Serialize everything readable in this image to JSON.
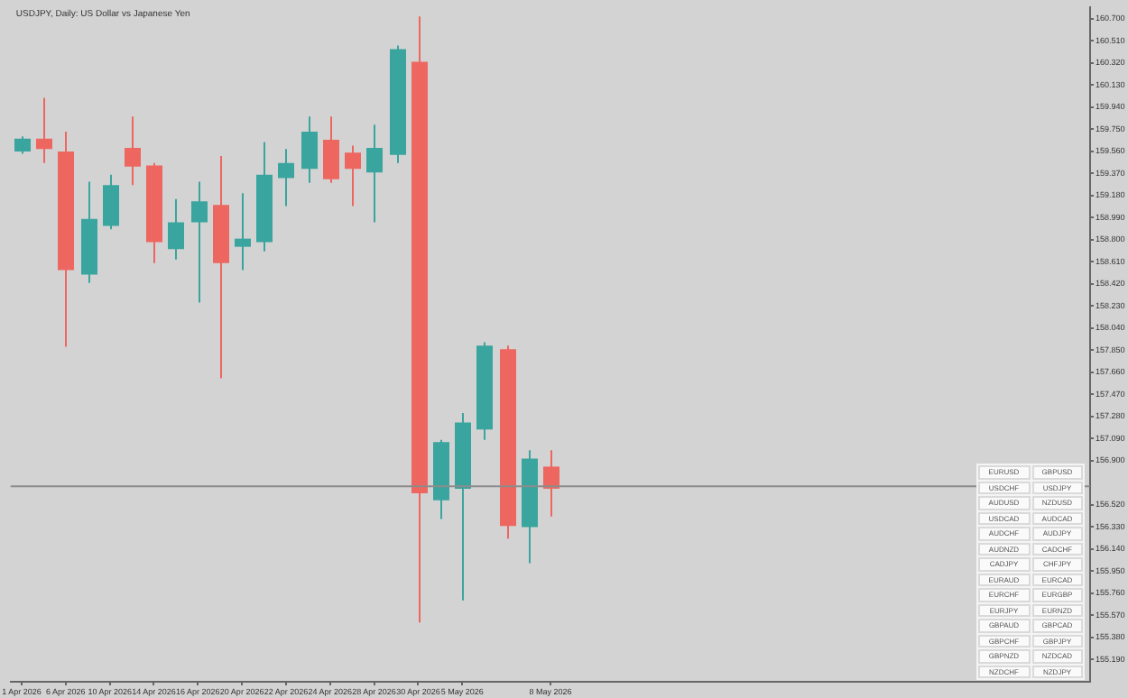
{
  "chart_data": {
    "type": "candlestick",
    "title": "USDJPY, Daily: US Dollar vs Japanese Yen",
    "categories": [
      "1 Apr 2026",
      null,
      "6 Apr 2026",
      null,
      "10 Apr 2026",
      null,
      "14 Apr 2026",
      null,
      "16 Apr 2026",
      null,
      "20 Apr 2026",
      null,
      "22 Apr 2026",
      null,
      "24 Apr 2026",
      null,
      "28 Apr 2026",
      null,
      "30 Apr 2026",
      null,
      "5 May 2026",
      null,
      null,
      null,
      "8 May 2026",
      null,
      null,
      null,
      null,
      null,
      null,
      null,
      null,
      null,
      null,
      null,
      null,
      null,
      null,
      null,
      null,
      null,
      null,
      null,
      null,
      null,
      null,
      null,
      null
    ],
    "ohlc": [
      [
        159.56,
        159.69,
        159.54,
        159.67
      ],
      [
        159.67,
        160.02,
        159.46,
        159.58
      ],
      [
        159.56,
        159.73,
        157.88,
        158.54
      ],
      [
        158.5,
        159.3,
        158.43,
        158.98
      ],
      [
        158.92,
        159.36,
        158.89,
        159.27
      ],
      [
        159.59,
        159.86,
        159.27,
        159.43
      ],
      [
        159.44,
        159.46,
        158.6,
        158.78
      ],
      [
        158.72,
        159.15,
        158.63,
        158.95
      ],
      [
        158.95,
        159.3,
        158.26,
        159.13
      ],
      [
        159.1,
        159.52,
        157.61,
        158.6
      ],
      [
        158.74,
        159.2,
        158.54,
        158.81
      ],
      [
        158.78,
        159.64,
        158.7,
        159.36
      ],
      [
        159.33,
        159.58,
        159.09,
        159.46
      ],
      [
        159.41,
        159.86,
        159.29,
        159.73
      ],
      [
        159.66,
        159.86,
        159.29,
        159.32
      ],
      [
        159.55,
        159.61,
        159.09,
        159.41
      ],
      [
        159.38,
        159.79,
        158.95,
        159.59
      ],
      [
        159.53,
        160.47,
        159.46,
        160.44
      ],
      [
        160.33,
        160.72,
        155.51,
        156.62
      ],
      [
        156.56,
        157.08,
        156.4,
        157.06
      ],
      [
        156.66,
        157.31,
        155.7,
        157.23
      ],
      [
        157.17,
        157.92,
        157.08,
        157.89
      ],
      [
        157.86,
        157.89,
        156.23,
        156.34
      ],
      [
        156.33,
        156.99,
        156.02,
        156.92
      ],
      [
        156.85,
        156.99,
        156.42,
        156.66
      ],
      null,
      null,
      null,
      null,
      null,
      null,
      null,
      null,
      null,
      null,
      null,
      null,
      null,
      null,
      null,
      null,
      null,
      null,
      null,
      null,
      null,
      null,
      null,
      null
    ],
    "colors": [
      "#3aa59e",
      "#ee6660",
      "#ee6660",
      "#3aa59e",
      "#3aa59e",
      "#ee6660",
      "#ee6660",
      "#3aa59e",
      "#3aa59e",
      "#ee6660",
      "#3aa59e",
      "#3aa59e",
      "#3aa59e",
      "#3aa59e",
      "#ee6660",
      "#ee6660",
      "#3aa59e",
      "#3aa59e",
      "#ee6660",
      "#3aa59e",
      "#3aa59e",
      "#3aa59e",
      "#ee6660",
      "#3aa59e",
      "#ee6660",
      null,
      null,
      null,
      null,
      null,
      null,
      null,
      null,
      null,
      null,
      null,
      null,
      null,
      null,
      null,
      null,
      null,
      null,
      null,
      null,
      null,
      null,
      null,
      null
    ],
    "ylim": [
      155.0,
      160.8
    ],
    "yticks": [
      {
        "value": 160.7,
        "label": "160.700"
      },
      {
        "value": 160.51,
        "label": "160.510"
      },
      {
        "value": 160.32,
        "label": "160.320"
      },
      {
        "value": 160.13,
        "label": "160.130"
      },
      {
        "value": 159.94,
        "label": "159.940"
      },
      {
        "value": 159.75,
        "label": "159.750"
      },
      {
        "value": 159.56,
        "label": "159.560"
      },
      {
        "value": 159.37,
        "label": "159.370"
      },
      {
        "value": 159.18,
        "label": "159.180"
      },
      {
        "value": 158.99,
        "label": "158.990"
      },
      {
        "value": 158.8,
        "label": "158.800"
      },
      {
        "value": 158.61,
        "label": "158.610"
      },
      {
        "value": 158.42,
        "label": "158.420"
      },
      {
        "value": 158.23,
        "label": "158.230"
      },
      {
        "value": 158.04,
        "label": "158.040"
      },
      {
        "value": 157.85,
        "label": "157.850"
      },
      {
        "value": 157.66,
        "label": "157.660"
      },
      {
        "value": 157.47,
        "label": "157.470"
      },
      {
        "value": 157.28,
        "label": "157.280"
      },
      {
        "value": 157.09,
        "label": "157.090"
      },
      {
        "value": 156.9,
        "label": "156.900"
      },
      {
        "value": 156.52,
        "label": "156.520"
      },
      {
        "value": 156.33,
        "label": "156.330"
      },
      {
        "value": 156.14,
        "label": "156.140"
      },
      {
        "value": 155.95,
        "label": "155.950"
      },
      {
        "value": 155.76,
        "label": "155.760"
      },
      {
        "value": 155.57,
        "label": "155.570"
      },
      {
        "value": 155.38,
        "label": "155.380"
      },
      {
        "value": 155.19,
        "label": "155.190"
      }
    ],
    "ref_lines": [
      {
        "axis": "y",
        "value": 156.68,
        "color": "#8c8c8c"
      }
    ],
    "annotations": [
      "EURUSD",
      "GBPUSD",
      "USDCHF",
      "USDJPY",
      "AUDUSD",
      "NZDUSD",
      "USDCAD",
      "AUDCAD",
      "AUDCHF",
      "AUDJPY",
      "AUDNZD",
      "CADCHF",
      "CADJPY",
      "CHFJPY",
      "EURAUD",
      "EURCAD",
      "EURCHF",
      "EURGBP",
      "EURJPY",
      "EURNZD",
      "GBPAUD",
      "GBPCAD",
      "GBPCHF",
      "GBPJPY",
      "GBPNZD",
      "NZDCAD",
      "NZDCHF",
      "NZDJPY"
    ],
    "legend": false
  }
}
